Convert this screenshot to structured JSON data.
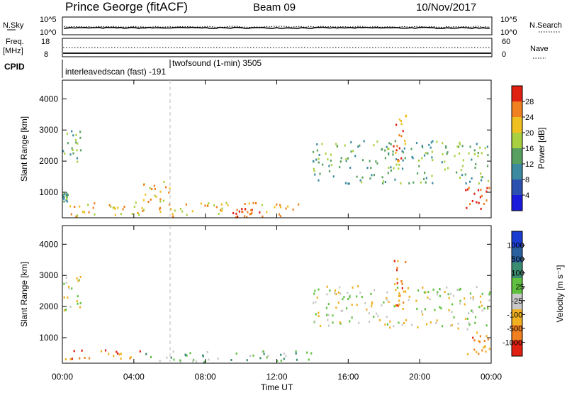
{
  "header": {
    "station": "Prince George (fitACF)",
    "beam": "Beam 09",
    "date": "10/Nov/2017"
  },
  "status_panel": {
    "nsky_label": "N.Sky",
    "nsky_ticks": [
      "10^5",
      "10^0"
    ],
    "nsearch_label": "N.Search",
    "nsearch_ticks": [
      "10^5",
      "10^0"
    ],
    "freq_label": "Freq.",
    "freq_unit": "[MHz]",
    "freq_ticks": [
      "18",
      "8"
    ],
    "nave_label": "Nave",
    "nave_ticks": [
      "60",
      "0"
    ],
    "cpid_label": "CPID",
    "cpid_entries": [
      {
        "text": "interleavedscan (fast) -191"
      },
      {
        "text": "twofsound (1-min) 3505"
      }
    ]
  },
  "chart_data": [
    {
      "type": "heatmap",
      "title": "",
      "xlabel": "",
      "ylabel": "Slant Range [km]",
      "x_ticks": [
        "00:00",
        "04:00",
        "08:00",
        "12:00",
        "16:00",
        "20:00",
        "00:00"
      ],
      "y_ticks": [
        "1000",
        "2000",
        "3000",
        "4000"
      ],
      "ylim": [
        180,
        4600
      ],
      "colorbar_label": "Power [dB]",
      "colorbar_ticks": [
        "4",
        "8",
        "12",
        "16",
        "20",
        "24",
        "28"
      ],
      "colorbar_range": [
        0,
        32
      ],
      "colors": [
        "#1a1adc",
        "#2a50b0",
        "#3c8aa0",
        "#58a060",
        "#a8d040",
        "#f0c020",
        "#f08020",
        "#e02010"
      ],
      "regions": [
        {
          "t": [
            0.0,
            1.0
          ],
          "range": [
            1900,
            3000
          ],
          "level": 3
        },
        {
          "t": [
            0.0,
            0.3
          ],
          "range": [
            700,
            1000
          ],
          "level": 3
        },
        {
          "t": [
            0.0,
            14.0
          ],
          "range": [
            250,
            700
          ],
          "level": 5
        },
        {
          "t": [
            4.5,
            6.0
          ],
          "range": [
            700,
            1400
          ],
          "level": 5
        },
        {
          "t": [
            9.5,
            11.0
          ],
          "range": [
            200,
            500
          ],
          "level": 7
        },
        {
          "t": [
            14.0,
            24.0
          ],
          "range": [
            1300,
            2700
          ],
          "level": 3
        },
        {
          "t": [
            22.5,
            24.0
          ],
          "range": [
            500,
            1200
          ],
          "level": 7
        },
        {
          "t": [
            18.5,
            19.2
          ],
          "range": [
            2000,
            3500
          ],
          "level": 6
        }
      ]
    },
    {
      "type": "heatmap",
      "title": "",
      "xlabel": "Time UT",
      "ylabel": "Slant Range [km]",
      "x_ticks": [
        "00:00",
        "04:00",
        "08:00",
        "12:00",
        "16:00",
        "20:00",
        "00:00"
      ],
      "y_ticks": [
        "1000",
        "2000",
        "3000",
        "4000"
      ],
      "ylim": [
        180,
        4600
      ],
      "colorbar_label": "Velocity [m s⁻¹]",
      "colorbar_ticks": [
        "1000",
        "500",
        "100",
        "25",
        "-25",
        "-100",
        "-500",
        "-1000"
      ],
      "colors": [
        "#1a3cd0",
        "#2a60a0",
        "#3a8c70",
        "#60c040",
        "#c8c8c8",
        "#f0b020",
        "#f08020",
        "#e02010"
      ],
      "regions": [
        {
          "t": [
            0.0,
            1.0
          ],
          "range": [
            1900,
            3000
          ],
          "level": 4
        },
        {
          "t": [
            0.0,
            4.5
          ],
          "range": [
            300,
            650
          ],
          "level": 6
        },
        {
          "t": [
            4.5,
            14.0
          ],
          "range": [
            200,
            600
          ],
          "level": 3
        },
        {
          "t": [
            14.0,
            24.0
          ],
          "range": [
            1300,
            2700
          ],
          "level": 4
        },
        {
          "t": [
            22.5,
            24.0
          ],
          "range": [
            500,
            1300
          ],
          "level": 6
        },
        {
          "t": [
            18.5,
            19.2
          ],
          "range": [
            2000,
            3500
          ],
          "level": 6
        }
      ]
    }
  ]
}
